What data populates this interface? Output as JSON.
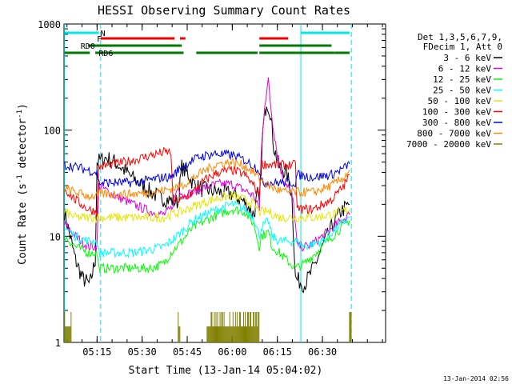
{
  "chart_data": {
    "type": "line",
    "title": "HESSI Observing Summary Count Rates",
    "xlabel": "Start Time (13-Jan-14 05:04:02)",
    "ylabel_parts": [
      "Count Rate (s",
      "-1",
      " detector",
      "-1",
      ")"
    ],
    "x_range_min": [
      5.0667,
      6.85
    ],
    "y_range": [
      1,
      1000
    ],
    "y_scale": "log",
    "x_ticks": [
      {
        "min": 5.25,
        "label": "05:15"
      },
      {
        "min": 5.5,
        "label": "05:30"
      },
      {
        "min": 5.75,
        "label": "05:45"
      },
      {
        "min": 6.0,
        "label": "06:00"
      },
      {
        "min": 6.25,
        "label": "06:15"
      },
      {
        "min": 6.5,
        "label": "06:30"
      }
    ],
    "y_ticks": [
      {
        "value": 1,
        "label": "1"
      },
      {
        "value": 10,
        "label": "10"
      },
      {
        "value": 100,
        "label": "100"
      },
      {
        "value": 1000,
        "label": "1000"
      }
    ],
    "legend_header": [
      "Det 1,3,5,6,7,9,",
      "FDecim 1, Att 0"
    ],
    "series": [
      {
        "name": "3 - 6 keV",
        "color": "#000000",
        "points": [
          [
            5.07,
            17
          ],
          [
            5.1,
            10
          ],
          [
            5.13,
            6
          ],
          [
            5.17,
            4
          ],
          [
            5.21,
            3.5
          ],
          [
            5.24,
            6
          ],
          [
            5.25,
            50
          ],
          [
            5.3,
            55
          ],
          [
            5.35,
            50
          ],
          [
            5.4,
            42
          ],
          [
            5.45,
            35
          ],
          [
            5.5,
            30
          ],
          [
            5.55,
            26
          ],
          [
            5.6,
            23
          ],
          [
            5.65,
            22
          ],
          [
            5.7,
            21
          ],
          [
            5.72,
            45
          ],
          [
            5.74,
            40
          ],
          [
            5.75,
            40
          ],
          [
            5.78,
            32
          ],
          [
            5.82,
            28
          ],
          [
            5.88,
            27
          ],
          [
            5.93,
            26
          ],
          [
            6.0,
            25
          ],
          [
            6.05,
            22
          ],
          [
            6.08,
            20
          ],
          [
            6.12,
            16
          ],
          [
            6.14,
            25
          ],
          [
            6.15,
            20
          ],
          [
            6.16,
            45
          ],
          [
            6.17,
            100
          ],
          [
            6.19,
            190
          ],
          [
            6.21,
            150
          ],
          [
            6.23,
            70
          ],
          [
            6.26,
            45
          ],
          [
            6.3,
            40
          ],
          [
            6.33,
            25
          ],
          [
            6.35,
            4
          ],
          [
            6.4,
            3.5
          ],
          [
            6.45,
            5
          ],
          [
            6.5,
            8
          ],
          [
            6.55,
            12
          ],
          [
            6.6,
            17
          ],
          [
            6.65,
            20
          ]
        ]
      },
      {
        "name": "6 - 12 keV",
        "color": "#e000e0",
        "points": [
          [
            5.07,
            13
          ],
          [
            5.13,
            10
          ],
          [
            5.2,
            8
          ],
          [
            5.25,
            8
          ],
          [
            5.26,
            30
          ],
          [
            5.35,
            24
          ],
          [
            5.45,
            20
          ],
          [
            5.55,
            17
          ],
          [
            5.62,
            16
          ],
          [
            5.66,
            18
          ],
          [
            5.7,
            30
          ],
          [
            5.73,
            24
          ],
          [
            5.78,
            26
          ],
          [
            5.85,
            29
          ],
          [
            5.92,
            31
          ],
          [
            6.0,
            31
          ],
          [
            6.07,
            27
          ],
          [
            6.12,
            24
          ],
          [
            6.15,
            18
          ],
          [
            6.16,
            60
          ],
          [
            6.18,
            180
          ],
          [
            6.2,
            290
          ],
          [
            6.22,
            130
          ],
          [
            6.25,
            60
          ],
          [
            6.28,
            35
          ],
          [
            6.31,
            30
          ],
          [
            6.34,
            20
          ],
          [
            6.36,
            8
          ],
          [
            6.42,
            8
          ],
          [
            6.5,
            10
          ],
          [
            6.58,
            13
          ],
          [
            6.65,
            16
          ]
        ]
      },
      {
        "name": "12 - 25 keV",
        "color": "#00ff00",
        "points": [
          [
            5.07,
            10
          ],
          [
            5.13,
            8
          ],
          [
            5.2,
            7
          ],
          [
            5.25,
            7
          ],
          [
            5.26,
            5
          ],
          [
            5.35,
            5
          ],
          [
            5.45,
            5
          ],
          [
            5.55,
            5
          ],
          [
            5.62,
            5.5
          ],
          [
            5.66,
            7
          ],
          [
            5.72,
            9
          ],
          [
            5.78,
            12
          ],
          [
            5.85,
            14
          ],
          [
            5.92,
            16
          ],
          [
            6.0,
            18
          ],
          [
            6.07,
            17
          ],
          [
            6.12,
            13
          ],
          [
            6.15,
            8
          ],
          [
            6.16,
            10
          ],
          [
            6.2,
            11
          ],
          [
            6.22,
            8
          ],
          [
            6.26,
            7
          ],
          [
            6.3,
            6
          ],
          [
            6.35,
            5
          ],
          [
            6.4,
            5.5
          ],
          [
            6.5,
            8
          ],
          [
            6.58,
            11
          ],
          [
            6.65,
            14
          ]
        ]
      },
      {
        "name": "25 - 50 keV",
        "color": "#00ffff",
        "points": [
          [
            5.07,
            12
          ],
          [
            5.13,
            10
          ],
          [
            5.2,
            9
          ],
          [
            5.25,
            9
          ],
          [
            5.26,
            7
          ],
          [
            5.35,
            7
          ],
          [
            5.45,
            7
          ],
          [
            5.55,
            7.5
          ],
          [
            5.62,
            8
          ],
          [
            5.66,
            9
          ],
          [
            5.72,
            11
          ],
          [
            5.78,
            14
          ],
          [
            5.85,
            16
          ],
          [
            5.92,
            18
          ],
          [
            6.0,
            20
          ],
          [
            6.07,
            18
          ],
          [
            6.12,
            15
          ],
          [
            6.15,
            10
          ],
          [
            6.16,
            12
          ],
          [
            6.2,
            14
          ],
          [
            6.22,
            10
          ],
          [
            6.26,
            9
          ],
          [
            6.3,
            9
          ],
          [
            6.35,
            9
          ],
          [
            6.4,
            8
          ],
          [
            6.5,
            9
          ],
          [
            6.58,
            12
          ],
          [
            6.65,
            15
          ]
        ]
      },
      {
        "name": "50 - 100 keV",
        "color": "#e6e600",
        "points": [
          [
            5.07,
            17
          ],
          [
            5.13,
            15
          ],
          [
            5.2,
            15
          ],
          [
            5.25,
            15
          ],
          [
            5.26,
            15
          ],
          [
            5.35,
            15
          ],
          [
            5.45,
            15
          ],
          [
            5.55,
            15
          ],
          [
            5.62,
            15
          ],
          [
            5.66,
            16
          ],
          [
            5.72,
            17
          ],
          [
            5.78,
            19
          ],
          [
            5.85,
            21
          ],
          [
            5.92,
            23
          ],
          [
            6.0,
            24
          ],
          [
            6.07,
            22
          ],
          [
            6.12,
            20
          ],
          [
            6.15,
            17
          ],
          [
            6.2,
            17
          ],
          [
            6.26,
            15
          ],
          [
            6.3,
            15
          ],
          [
            6.35,
            15
          ],
          [
            6.45,
            15
          ],
          [
            6.55,
            16
          ],
          [
            6.65,
            18
          ]
        ]
      },
      {
        "name": "100 - 300 keV",
        "color": "#ff0000",
        "points": [
          [
            5.07,
            28
          ],
          [
            5.13,
            22
          ],
          [
            5.2,
            18
          ],
          [
            5.25,
            17
          ],
          [
            5.26,
            45
          ],
          [
            5.35,
            48
          ],
          [
            5.45,
            52
          ],
          [
            5.55,
            58
          ],
          [
            5.62,
            62
          ],
          [
            5.66,
            62
          ],
          [
            5.67,
            22
          ],
          [
            5.72,
            22
          ],
          [
            5.78,
            26
          ],
          [
            5.85,
            34
          ],
          [
            5.92,
            40
          ],
          [
            6.0,
            42
          ],
          [
            6.07,
            38
          ],
          [
            6.12,
            30
          ],
          [
            6.15,
            24
          ],
          [
            6.16,
            48
          ],
          [
            6.25,
            47
          ],
          [
            6.3,
            47
          ],
          [
            6.35,
            47
          ],
          [
            6.36,
            18
          ],
          [
            6.45,
            18
          ],
          [
            6.55,
            22
          ],
          [
            6.62,
            30
          ],
          [
            6.65,
            38
          ]
        ]
      },
      {
        "name": "300 - 800 keV",
        "color": "#0000e0",
        "points": [
          [
            5.07,
            47
          ],
          [
            5.13,
            45
          ],
          [
            5.2,
            42
          ],
          [
            5.25,
            40
          ],
          [
            5.26,
            32
          ],
          [
            5.35,
            32
          ],
          [
            5.45,
            32
          ],
          [
            5.55,
            34
          ],
          [
            5.62,
            36
          ],
          [
            5.66,
            36
          ],
          [
            5.7,
            42
          ],
          [
            5.76,
            50
          ],
          [
            5.82,
            56
          ],
          [
            5.9,
            60
          ],
          [
            6.0,
            58
          ],
          [
            6.07,
            52
          ],
          [
            6.12,
            46
          ],
          [
            6.15,
            42
          ],
          [
            6.16,
            32
          ],
          [
            6.25,
            32
          ],
          [
            6.3,
            32
          ],
          [
            6.35,
            32
          ],
          [
            6.36,
            38
          ],
          [
            6.45,
            36
          ],
          [
            6.55,
            38
          ],
          [
            6.62,
            44
          ],
          [
            6.65,
            48
          ]
        ]
      },
      {
        "name": "800 - 7000 keV",
        "color": "#ff8800",
        "points": [
          [
            5.07,
            28
          ],
          [
            5.13,
            26
          ],
          [
            5.2,
            24
          ],
          [
            5.25,
            24
          ],
          [
            5.26,
            25
          ],
          [
            5.35,
            25
          ],
          [
            5.45,
            25
          ],
          [
            5.55,
            26
          ],
          [
            5.62,
            27
          ],
          [
            5.66,
            28
          ],
          [
            5.72,
            30
          ],
          [
            5.78,
            35
          ],
          [
            5.85,
            42
          ],
          [
            5.92,
            48
          ],
          [
            6.0,
            50
          ],
          [
            6.07,
            46
          ],
          [
            6.12,
            40
          ],
          [
            6.15,
            35
          ],
          [
            6.2,
            30
          ],
          [
            6.26,
            27
          ],
          [
            6.3,
            26
          ],
          [
            6.35,
            26
          ],
          [
            6.45,
            26
          ],
          [
            6.55,
            30
          ],
          [
            6.62,
            36
          ],
          [
            6.65,
            42
          ]
        ]
      },
      {
        "name": "7000 - 20000 keV",
        "color": "#808000",
        "points": []
      }
    ],
    "flags": [
      {
        "label": "N",
        "color": "#00e8e8",
        "segments": [
          [
            5.07,
            5.26
          ],
          [
            6.38,
            6.65
          ]
        ]
      },
      {
        "label": "F",
        "color": "#ee0000",
        "segments": [
          [
            5.27,
            5.68
          ],
          [
            5.71,
            5.74
          ],
          [
            6.15,
            6.31
          ]
        ]
      },
      {
        "label": "RD0",
        "color": "#007a00",
        "segments": [
          [
            5.2,
            5.72
          ],
          [
            6.15,
            6.55
          ]
        ]
      },
      {
        "label": "RD6",
        "color": "#007a00",
        "segments": [
          [
            5.07,
            5.21
          ],
          [
            5.24,
            5.73
          ],
          [
            5.8,
            6.14
          ],
          [
            6.15,
            6.57
          ],
          [
            6.57,
            6.65
          ]
        ]
      }
    ],
    "cyan_solid_lines_min": [
      5.07,
      6.38
    ],
    "cyan_dashed_lines_min": [
      5.27,
      6.66
    ],
    "footer_date": "13-Jan-2014 02:56"
  }
}
